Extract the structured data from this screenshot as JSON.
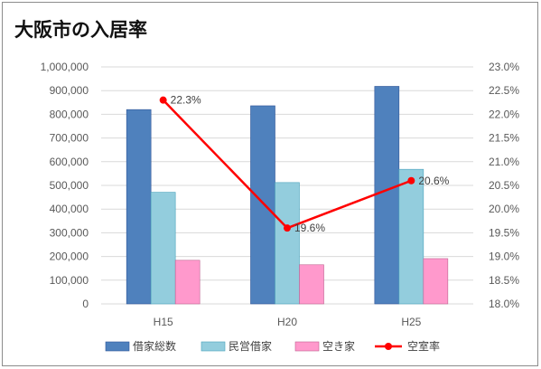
{
  "colors": {
    "borrowed_total": "#4f81bd",
    "private_rental": "#93cddd",
    "vacant": "#ff99cc",
    "vacancy_rate": "#ff0000",
    "gridline": "#d9d9d9"
  },
  "chart_data": {
    "type": "bar",
    "title": "大阪市の入居率",
    "categories": [
      "H15",
      "H20",
      "H25"
    ],
    "series": [
      {
        "name": "借家総数",
        "kind": "bar",
        "axis": "left",
        "values": [
          820000,
          836000,
          918000
        ]
      },
      {
        "name": "民営借家",
        "kind": "bar",
        "axis": "left",
        "values": [
          471000,
          512000,
          568000
        ]
      },
      {
        "name": "空き家",
        "kind": "bar",
        "axis": "left",
        "values": [
          184000,
          165000,
          191000
        ]
      },
      {
        "name": "空室率",
        "kind": "line",
        "axis": "right",
        "values": [
          22.3,
          19.6,
          20.6
        ],
        "labels": [
          "22.3%",
          "19.6%",
          "20.6%"
        ]
      }
    ],
    "y_left": {
      "min": 0,
      "max": 1000000,
      "step": 100000,
      "ticks": [
        "0",
        "100,000",
        "200,000",
        "300,000",
        "400,000",
        "500,000",
        "600,000",
        "700,000",
        "800,000",
        "900,000",
        "1,000,000"
      ]
    },
    "y_right": {
      "min": 18.0,
      "max": 23.0,
      "step": 0.5,
      "ticks": [
        "18.0%",
        "18.5%",
        "19.0%",
        "19.5%",
        "20.0%",
        "20.5%",
        "21.0%",
        "21.5%",
        "22.0%",
        "22.5%",
        "23.0%"
      ]
    },
    "grid": "horizontal",
    "legend": "bottom"
  }
}
